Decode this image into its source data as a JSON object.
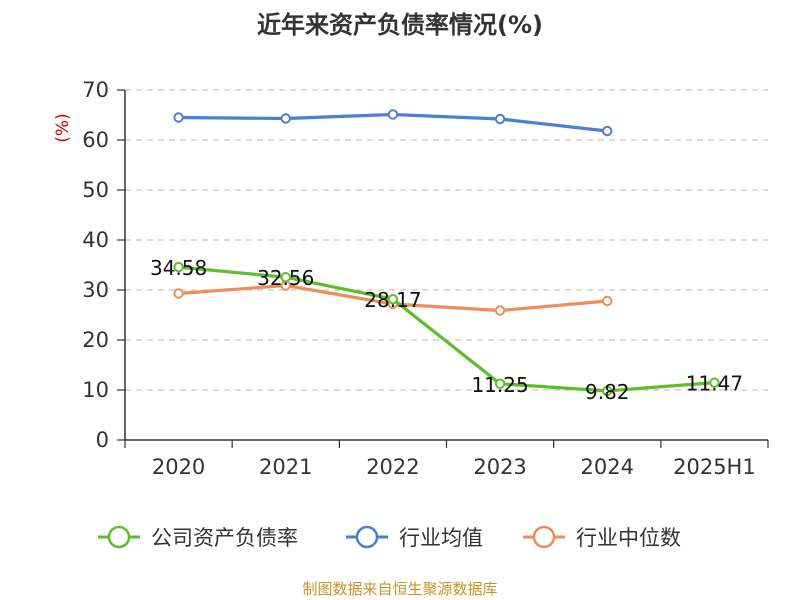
{
  "chart_data": {
    "type": "line",
    "title": "近年来资产负债率情况(%)",
    "ylabel": "(%)",
    "ylim": [
      0,
      70
    ],
    "yticks": [
      0,
      10,
      20,
      30,
      40,
      50,
      60,
      70
    ],
    "categories": [
      "2020",
      "2021",
      "2022",
      "2023",
      "2024",
      "2025H1"
    ],
    "grid": true,
    "legend_position": "bottom",
    "series": [
      {
        "name": "公司资产负债率",
        "color": "#5cbf2a",
        "values": [
          34.58,
          32.56,
          28.17,
          11.25,
          9.82,
          11.47
        ],
        "labels": [
          "34.58",
          "32.56",
          "28.17",
          "11.25",
          "9.82",
          "11.47"
        ]
      },
      {
        "name": "行业均值",
        "color": "#4a7fd6",
        "values": [
          64.5,
          64.3,
          65.1,
          64.2,
          61.8,
          null
        ]
      },
      {
        "name": "行业中位数",
        "color": "#f08c5a",
        "values": [
          29.3,
          30.9,
          27.2,
          25.9,
          27.8,
          null
        ]
      }
    ],
    "source": "制图数据来自恒生聚源数据库"
  }
}
